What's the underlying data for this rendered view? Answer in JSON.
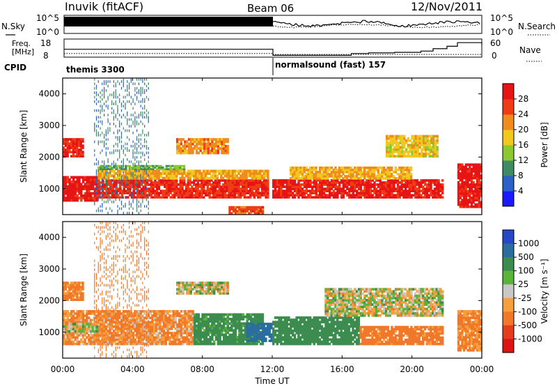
{
  "header": {
    "station": "Inuvik (fitACF)",
    "beam": "Beam 06",
    "date": "12/Nov/2011"
  },
  "top_panels": {
    "nsky_label": "N.Sky",
    "nsearch_label": "N.Search",
    "noise_ticks": [
      "10^5",
      "10^0"
    ],
    "freq_label_line1": "Freq.",
    "freq_label_line2": "[MHz]",
    "freq_ticks": [
      "18",
      "8"
    ],
    "nave_label": "Nave",
    "nave_ticks": [
      "60",
      "0"
    ],
    "cpid_label": "CPID",
    "cpid_segments": [
      {
        "name": "themis 3300",
        "start_hour": 0
      },
      {
        "name": "normalsound (fast) 157",
        "start_hour": 12
      }
    ]
  },
  "axes": {
    "ylabel": "Slant Range [km]",
    "xlabel": "Time UT",
    "y_ticks": [
      "1000",
      "2000",
      "3000",
      "4000"
    ],
    "x_ticks": [
      "00:00",
      "04:00",
      "08:00",
      "12:00",
      "16:00",
      "20:00",
      "00:00"
    ]
  },
  "power_colorbar": {
    "label": "Power [dB]",
    "ticks": [
      "4",
      "8",
      "12",
      "16",
      "20",
      "24",
      "28"
    ],
    "colors": [
      "#1a1aff",
      "#2a62c8",
      "#3c8c64",
      "#8cc832",
      "#f0c81e",
      "#f08c1e",
      "#f03c14",
      "#e61414"
    ]
  },
  "velocity_colorbar": {
    "label": "Velocity [m s⁻¹]",
    "ticks": [
      "1000",
      "500",
      "100",
      "25",
      "-25",
      "-100",
      "-500",
      "-1000"
    ],
    "colors": [
      "#2846c8",
      "#2a6ea0",
      "#3c8c50",
      "#5ab43c",
      "#c8c8c8",
      "#f5a03c",
      "#f07828",
      "#e63c1e",
      "#dc1414"
    ]
  },
  "chart_data": [
    {
      "type": "heatmap",
      "title": "",
      "xlabel": "Time UT",
      "ylabel": "Slant Range [km]",
      "xlim": [
        0,
        24
      ],
      "ylim": [
        180,
        4500
      ],
      "colorbar_label": "Power [dB]",
      "bands": [
        {
          "t0": 0.0,
          "t1": 2.0,
          "r0": 600,
          "r1": 1400,
          "level": 28
        },
        {
          "t0": 2.0,
          "t1": 11.8,
          "r0": 700,
          "r1": 1300,
          "level": 26
        },
        {
          "t0": 2.0,
          "t1": 11.8,
          "r0": 1300,
          "r1": 1600,
          "level": 18
        },
        {
          "t0": 2.0,
          "t1": 7.0,
          "r0": 1600,
          "r1": 1750,
          "level": 10
        },
        {
          "t0": 12.0,
          "t1": 21.8,
          "r0": 700,
          "r1": 1300,
          "level": 27
        },
        {
          "t0": 13.0,
          "t1": 20.0,
          "r0": 1300,
          "r1": 1700,
          "level": 18
        },
        {
          "t0": 0.0,
          "t1": 1.2,
          "r0": 2000,
          "r1": 2600,
          "level": 26
        },
        {
          "t0": 6.5,
          "t1": 9.5,
          "r0": 2100,
          "r1": 2600,
          "level": 20
        },
        {
          "t0": 18.5,
          "t1": 21.5,
          "r0": 2000,
          "r1": 2700,
          "level": 16
        },
        {
          "t0": 22.6,
          "t1": 24.0,
          "r0": 400,
          "r1": 1800,
          "level": 28
        },
        {
          "t0": 9.5,
          "t1": 11.5,
          "r0": 200,
          "r1": 450,
          "level": 24
        },
        {
          "t0": 1.8,
          "t1": 5.0,
          "r0": 200,
          "r1": 4500,
          "level": 6
        }
      ]
    },
    {
      "type": "heatmap",
      "title": "",
      "xlabel": "Time UT",
      "ylabel": "Slant Range [km]",
      "xlim": [
        0,
        24
      ],
      "ylim": [
        180,
        4500
      ],
      "colorbar_label": "Velocity [m s⁻¹]",
      "bands": [
        {
          "t0": 0.0,
          "t1": 7.5,
          "r0": 600,
          "r1": 1700,
          "level": -120
        },
        {
          "t0": 7.5,
          "t1": 11.5,
          "r0": 600,
          "r1": 1600,
          "level": 200
        },
        {
          "t0": 10.5,
          "t1": 12.0,
          "r0": 700,
          "r1": 1300,
          "level": 800
        },
        {
          "t0": 12.0,
          "t1": 17.0,
          "r0": 600,
          "r1": 1500,
          "level": 300
        },
        {
          "t0": 17.0,
          "t1": 21.8,
          "r0": 600,
          "r1": 1200,
          "level": -200
        },
        {
          "t0": 0.0,
          "t1": 1.2,
          "r0": 2000,
          "r1": 2600,
          "level": -150
        },
        {
          "t0": 15.0,
          "t1": 21.8,
          "r0": 1500,
          "r1": 2400,
          "level": 0
        },
        {
          "t0": 6.5,
          "t1": 9.5,
          "r0": 2200,
          "r1": 2600,
          "level": 0
        },
        {
          "t0": 0.0,
          "t1": 2.0,
          "r0": 1000,
          "r1": 1300,
          "level": 0
        },
        {
          "t0": 22.6,
          "t1": 24.0,
          "r0": 400,
          "r1": 1700,
          "level": -150
        },
        {
          "t0": 1.8,
          "t1": 5.0,
          "r0": 200,
          "r1": 4500,
          "level": -300
        }
      ]
    },
    {
      "type": "line",
      "title": "",
      "xlabel": "",
      "ylabel": "Freq. [MHz]",
      "xlim": [
        0,
        24
      ],
      "ylim": [
        8,
        18
      ],
      "series": [
        {
          "name": "Freq.",
          "x": [
            0,
            12,
            12,
            24
          ],
          "y": [
            10,
            10,
            9.5,
            9.5
          ]
        }
      ]
    },
    {
      "type": "line",
      "title": "",
      "xlabel": "",
      "ylabel": "Nave",
      "xlim": [
        0,
        24
      ],
      "ylim": [
        0,
        60
      ],
      "series": [
        {
          "name": "Nave",
          "x": [
            0,
            12,
            12,
            16.5,
            17.5,
            19,
            20.5,
            21.2,
            22,
            22.6,
            24
          ],
          "y": [
            26,
            26,
            6,
            12,
            14,
            16,
            20,
            28,
            36,
            48,
            40
          ]
        }
      ]
    }
  ]
}
